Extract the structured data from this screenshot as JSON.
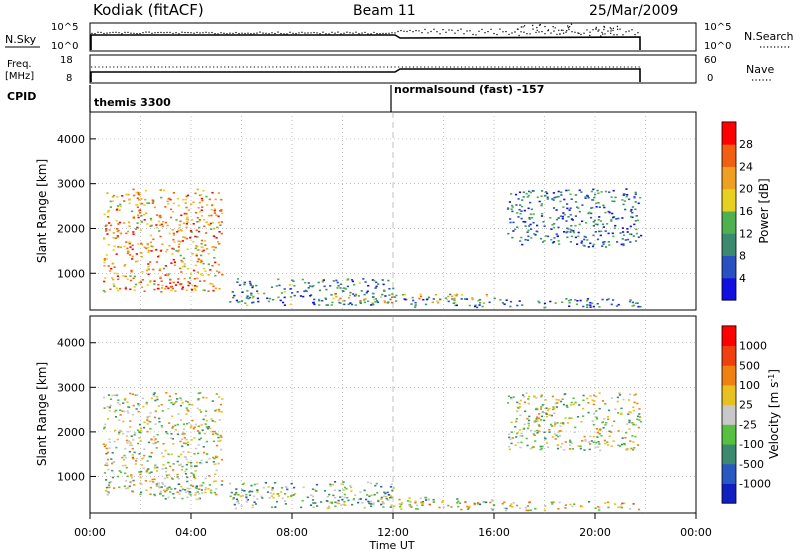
{
  "header": {
    "station": "Kodiak (fitACF)",
    "beam": "Beam 11",
    "date": "25/Mar/2009"
  },
  "status_panels": {
    "nsky_label": "N.Sky",
    "nsky_ticks": [
      "10^5",
      "10^0"
    ],
    "nsearch_label": "N.Search",
    "nsearch_ticks": [
      "10^5",
      "10^0"
    ],
    "freq_label": "Freq.",
    "freq_unit": "[MHz]",
    "freq_ticks": [
      "18",
      "8"
    ],
    "nave_label": "Nave",
    "nave_ticks": [
      "60",
      "0"
    ],
    "cpid_label": "CPID",
    "cpid_segments": [
      {
        "name": "themis 3300",
        "start_hour": 0.0
      },
      {
        "name": "normalsound (fast) -157",
        "start_hour": 12.0
      }
    ]
  },
  "chart_data": [
    {
      "type": "heatmap",
      "title": "",
      "xlabel": "Time UT",
      "ylabel": "Slant Range [km]",
      "x_ticks": [
        "00:00",
        "04:00",
        "08:00",
        "12:00",
        "16:00",
        "20:00",
        "00:00"
      ],
      "xlim": [
        0,
        24
      ],
      "ylim": [
        180,
        4600
      ],
      "y_ticks": [
        1000,
        2000,
        3000,
        4000
      ],
      "colorbar": {
        "label": "Power [dB]",
        "ticks": [
          "4",
          "8",
          "12",
          "16",
          "20",
          "24",
          "28"
        ],
        "range": [
          0,
          30
        ],
        "colors": [
          "#1010e0",
          "#2850c0",
          "#3a8a70",
          "#4fb050",
          "#e8d020",
          "#f0a020",
          "#f06010",
          "#ff0000"
        ]
      },
      "scatter_regions": [
        {
          "t": [
            0.5,
            5.2
          ],
          "r": [
            600,
            2900
          ],
          "level": 0.7
        },
        {
          "t": [
            2.5,
            4.2
          ],
          "r": [
            650,
            900
          ],
          "level": 0.95
        },
        {
          "t": [
            5.5,
            12.0
          ],
          "r": [
            300,
            900
          ],
          "level": 0.3
        },
        {
          "t": [
            9.5,
            16.0
          ],
          "r": [
            350,
            550
          ],
          "level": 0.55
        },
        {
          "t": [
            12.0,
            21.8
          ],
          "r": [
            250,
            450
          ],
          "level": 0.25
        },
        {
          "t": [
            16.5,
            21.8
          ],
          "r": [
            1600,
            2900
          ],
          "level": 0.25
        }
      ]
    },
    {
      "type": "heatmap",
      "title": "",
      "xlabel": "Time UT",
      "ylabel": "Slant Range [km]",
      "x_ticks": [
        "00:00",
        "04:00",
        "08:00",
        "12:00",
        "16:00",
        "20:00",
        "00:00"
      ],
      "xlim": [
        0,
        24
      ],
      "ylim": [
        180,
        4600
      ],
      "y_ticks": [
        1000,
        2000,
        3000,
        4000
      ],
      "colorbar": {
        "label": "Velocity [m s^-1]",
        "ticks": [
          "1000",
          "500",
          "100",
          "25",
          "-25",
          "-100",
          "-500",
          "-1000"
        ],
        "colors": [
          "#1020c0",
          "#2858c0",
          "#3a8a70",
          "#58c040",
          "#c8c8c8",
          "#e8c020",
          "#f08010",
          "#f04010",
          "#ff0000"
        ]
      },
      "scatter_regions": [
        {
          "t": [
            0.5,
            5.2
          ],
          "r": [
            600,
            2900
          ],
          "level": 0.5
        },
        {
          "t": [
            2.5,
            4.5
          ],
          "r": [
            500,
            900
          ],
          "level": 0.35
        },
        {
          "t": [
            5.5,
            12.0
          ],
          "r": [
            300,
            900
          ],
          "level": 0.4
        },
        {
          "t": [
            9.5,
            16.0
          ],
          "r": [
            350,
            550
          ],
          "level": 0.45
        },
        {
          "t": [
            12.0,
            21.8
          ],
          "r": [
            250,
            450
          ],
          "level": 0.55
        },
        {
          "t": [
            16.5,
            21.8
          ],
          "r": [
            1600,
            2900
          ],
          "level": 0.5
        }
      ]
    }
  ],
  "colors": {
    "grid": "#9a9a9a",
    "axis": "#000000"
  }
}
